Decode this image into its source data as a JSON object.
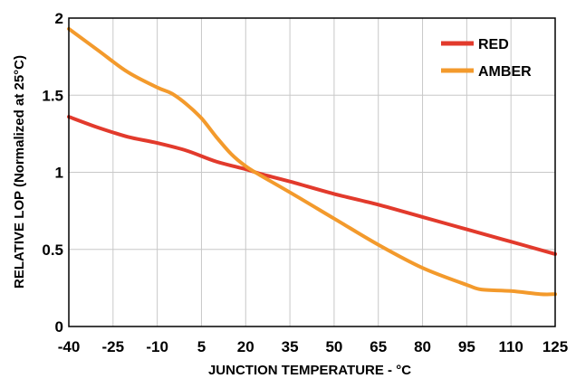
{
  "chart_data": {
    "type": "line",
    "title": "",
    "xlabel": "JUNCTION TEMPERATURE - °C",
    "ylabel": "RELATIVE  LOP  (Normalized at 25°C)",
    "xlim": [
      -40,
      125
    ],
    "ylim": [
      0,
      2
    ],
    "xticks": [
      -40,
      -25,
      -10,
      5,
      20,
      35,
      50,
      65,
      80,
      95,
      110,
      125
    ],
    "yticks": [
      0,
      0.5,
      1,
      1.5,
      2
    ],
    "xtick_labels": [
      "-40",
      "-25",
      "-10",
      "5",
      "20",
      "35",
      "50",
      "65",
      "80",
      "95",
      "110",
      "125"
    ],
    "ytick_labels": [
      "0",
      "0.5",
      "1",
      "1.5",
      "2"
    ],
    "grid": true,
    "legend_position": "top-right",
    "series": [
      {
        "name": "RED",
        "color": "#e23a2c",
        "x": [
          -40,
          -30,
          -20,
          -10,
          0,
          10,
          20,
          25,
          35,
          50,
          65,
          80,
          95,
          110,
          125
        ],
        "y": [
          1.36,
          1.29,
          1.23,
          1.19,
          1.14,
          1.07,
          1.02,
          0.99,
          0.94,
          0.86,
          0.79,
          0.71,
          0.63,
          0.55,
          0.47
        ]
      },
      {
        "name": "AMBER",
        "color": "#f39a2c",
        "x": [
          -40,
          -30,
          -20,
          -10,
          -5,
          0,
          5,
          10,
          15,
          20,
          25,
          35,
          50,
          65,
          80,
          95,
          100,
          110,
          120,
          125
        ],
        "y": [
          1.93,
          1.79,
          1.65,
          1.55,
          1.51,
          1.44,
          1.35,
          1.23,
          1.12,
          1.04,
          0.98,
          0.87,
          0.7,
          0.53,
          0.38,
          0.27,
          0.24,
          0.23,
          0.21,
          0.21
        ]
      }
    ]
  }
}
